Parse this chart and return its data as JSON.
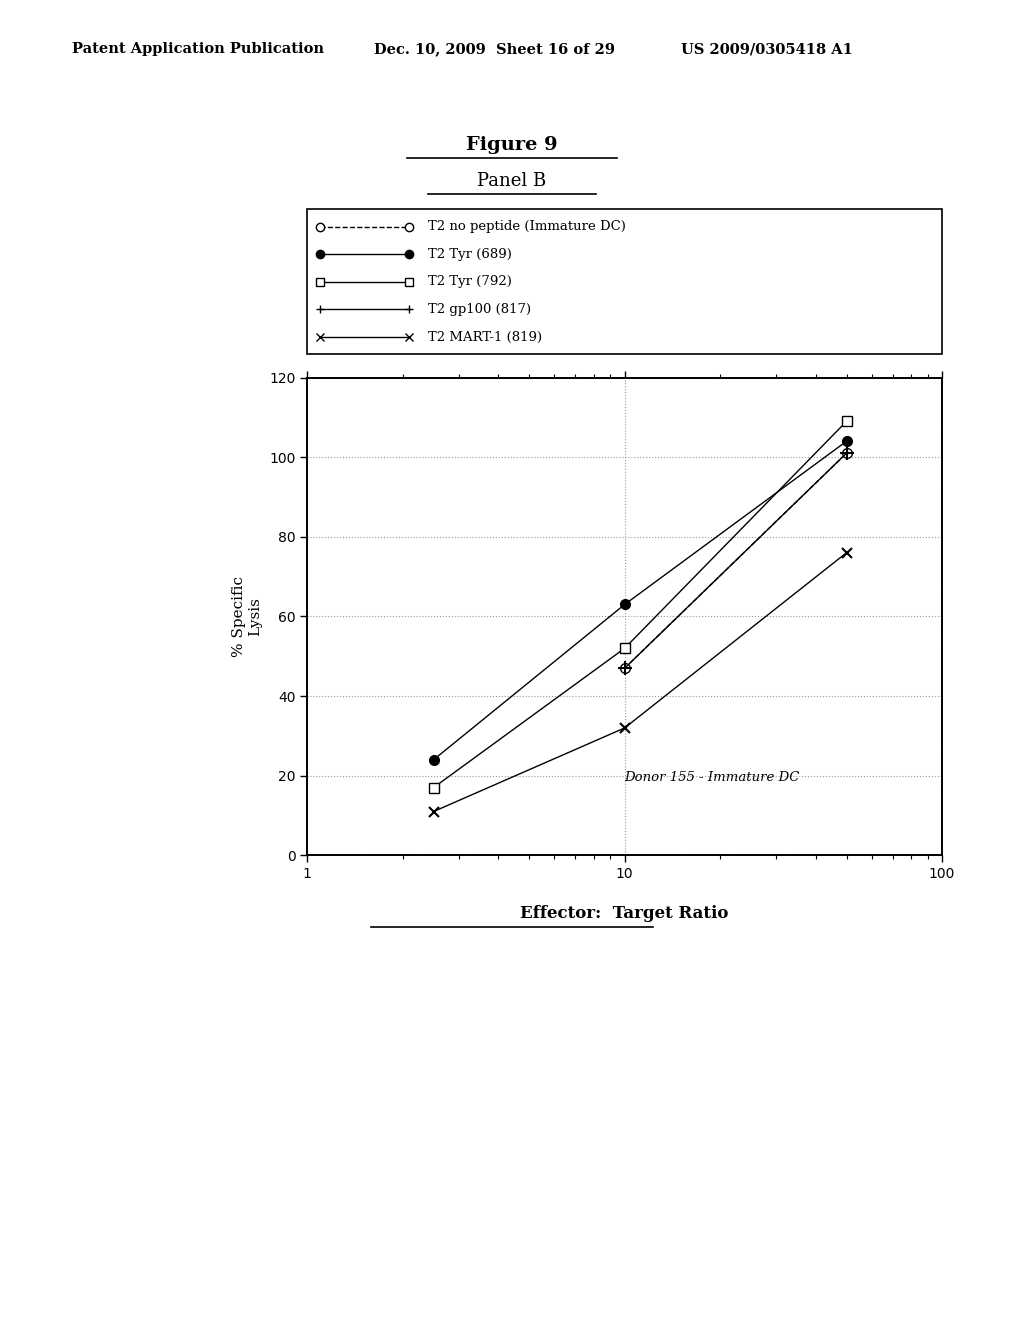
{
  "title1": "Figure 9",
  "title2": "Panel B",
  "xlabel": "Effector:  Target Ratio",
  "ylabel": "% Specific\nLysis",
  "annotation": "Donor 155 - Immature DC",
  "header_left": "Patent Application Publication",
  "header_center": "Dec. 10, 2009  Sheet 16 of 29",
  "header_right": "US 2009/0305418 A1",
  "series": [
    {
      "label": "T2 no peptide (Immature DC)",
      "x": [
        2.5,
        10,
        50
      ],
      "y": [
        null,
        47,
        101
      ],
      "marker": "o",
      "fillstyle": "none",
      "linestyle": "--"
    },
    {
      "label": "T2 Tyr (689)",
      "x": [
        2.5,
        10,
        50
      ],
      "y": [
        24,
        63,
        104
      ],
      "marker": "o",
      "fillstyle": "full",
      "linestyle": "-"
    },
    {
      "label": "T2 Tyr (792)",
      "x": [
        2.5,
        10,
        50
      ],
      "y": [
        17,
        52,
        109
      ],
      "marker": "s",
      "fillstyle": "none",
      "linestyle": "-"
    },
    {
      "label": "T2 gp100 (817)",
      "x": [
        2.5,
        10,
        50
      ],
      "y": [
        null,
        47,
        101
      ],
      "marker": "+",
      "fillstyle": "full",
      "linestyle": "-"
    },
    {
      "label": "T2 MART-1 (819)",
      "x": [
        2.5,
        10,
        50
      ],
      "y": [
        11,
        32,
        76
      ],
      "marker": "x",
      "fillstyle": "full",
      "linestyle": "-"
    }
  ],
  "xlim": [
    1,
    100
  ],
  "ylim": [
    0,
    120
  ],
  "yticks": [
    0,
    20,
    40,
    60,
    80,
    100,
    120
  ],
  "background_color": "#ffffff",
  "grid_color": "#999999"
}
